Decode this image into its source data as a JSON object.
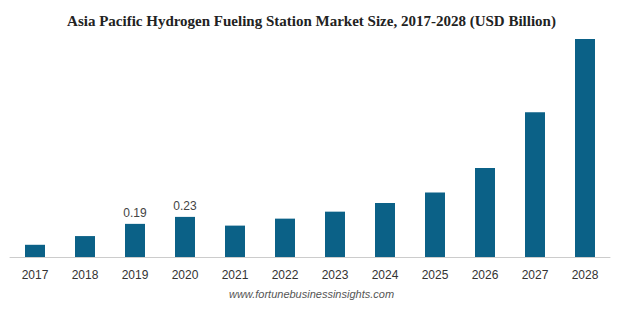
{
  "chart_data": {
    "type": "bar",
    "title": "Asia Pacific Hydrogen Fueling Station Market Size, 2017-2028 (USD Billion)",
    "source": "www.fortunebusinessinsights.com",
    "categories": [
      "2017",
      "2018",
      "2019",
      "2020",
      "2021",
      "2022",
      "2023",
      "2024",
      "2025",
      "2026",
      "2027",
      "2028"
    ],
    "values": [
      0.07,
      0.12,
      0.19,
      0.23,
      0.18,
      0.22,
      0.26,
      0.31,
      0.37,
      0.51,
      0.83,
      1.25
    ],
    "value_labels": [
      null,
      null,
      "0.19",
      "0.23",
      null,
      null,
      null,
      null,
      null,
      null,
      null,
      null
    ],
    "color": "#0b6187",
    "grid": false,
    "tick_labels": "x"
  }
}
